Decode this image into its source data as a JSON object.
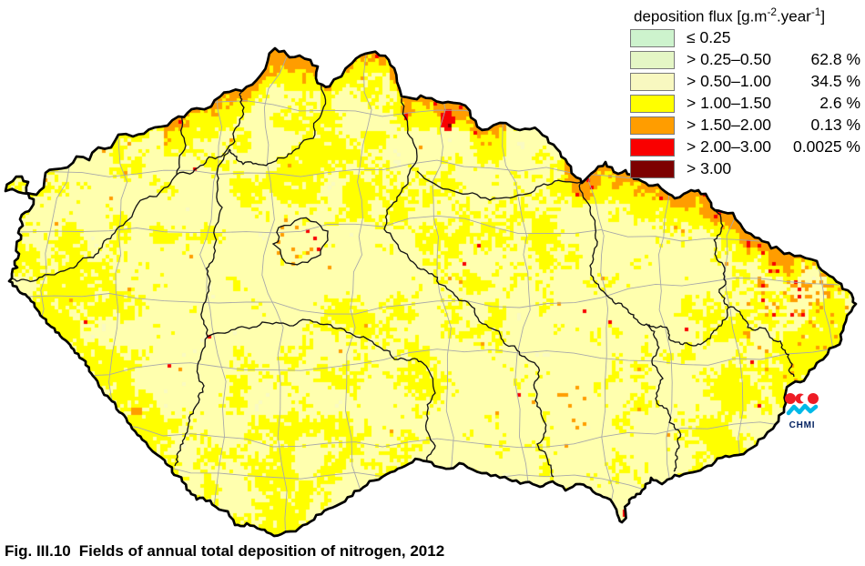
{
  "figure": {
    "caption_label": "Fig. III.10",
    "caption_text": "Fields of annual total deposition of nitrogen, 2012"
  },
  "legend": {
    "title": {
      "prefix": "deposition flux [g.m",
      "sup1": "-2",
      "mid": ".year",
      "sup2": "-1",
      "suffix": "]"
    },
    "rows": [
      {
        "label": "≤ 0.25",
        "pct": "",
        "color": "#cdf3cd"
      },
      {
        "label": "> 0.25–0.50",
        "pct": "62.8 %",
        "color": "#e4f6c5"
      },
      {
        "label": "> 0.50–1.00",
        "pct": "34.5 %",
        "color": "#f8f8c0"
      },
      {
        "label": "> 1.00–1.50",
        "pct": "2.6 %",
        "color": "#ffff00"
      },
      {
        "label": "> 1.50–2.00",
        "pct": "0.13 %",
        "color": "#ff9d00"
      },
      {
        "label": "> 2.00–3.00",
        "pct": "0.0025 %",
        "color": "#f90000"
      },
      {
        "label": "> 3.00",
        "pct": "",
        "color": "#7d0000"
      }
    ]
  },
  "logo": {
    "label": "CHMI",
    "red": "#ee1c25",
    "cyan": "#00b9e8",
    "navy": "#002060"
  },
  "map": {
    "background": "#ffffff",
    "border_color": "#000000",
    "region_line_color": "#141414",
    "district_line_color": "#a9a9a9",
    "class_colors": {
      "base": "#ffffae",
      "pale": "#f9fac2",
      "yellow": "#ffff00",
      "orange": "#ff9d00",
      "red": "#f80000",
      "darkred": "#7d0000"
    }
  }
}
